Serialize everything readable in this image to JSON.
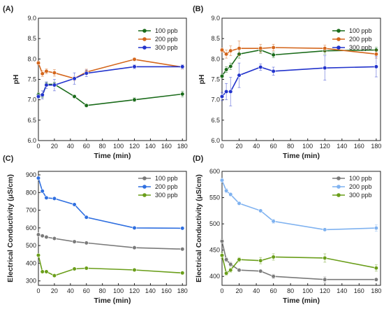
{
  "chart_data": [
    {
      "type": "line",
      "panel_label": "(A)",
      "xlabel": "Time (min)",
      "ylabel": "pH",
      "xlim": [
        0,
        185
      ],
      "ylim": [
        6.0,
        9.0
      ],
      "xticks": [
        0,
        20,
        40,
        60,
        80,
        100,
        120,
        140,
        160,
        180
      ],
      "yticks": [
        6.0,
        6.5,
        7.0,
        7.5,
        8.0,
        8.5,
        9.0
      ],
      "ytick_labels": [
        "6.0",
        "6.5",
        "7.0",
        "7.5",
        "8.0",
        "8.5",
        "9.0"
      ],
      "legend_position": "top-right",
      "x": [
        0,
        5,
        10,
        20,
        45,
        60,
        120,
        180
      ],
      "series": [
        {
          "name": "100 ppb",
          "color": "#1a6b1a",
          "values": [
            7.12,
            7.1,
            7.38,
            7.38,
            7.08,
            6.86,
            7.0,
            7.14
          ],
          "errors": [
            0.05,
            0.05,
            0.05,
            0.05,
            0.04,
            0.04,
            0.05,
            0.07
          ]
        },
        {
          "name": "200 ppb",
          "color": "#d4661c",
          "values": [
            7.9,
            7.64,
            7.7,
            7.66,
            7.52,
            7.68,
            7.99,
            7.8
          ],
          "errors": [
            0.05,
            0.07,
            0.06,
            0.08,
            0.05,
            0.07,
            0.04,
            0.05
          ]
        },
        {
          "name": "300 ppb",
          "color": "#2233cc",
          "values": [
            7.08,
            7.12,
            7.36,
            7.36,
            7.52,
            7.65,
            7.81,
            7.81
          ],
          "errors": [
            0.05,
            0.1,
            0.08,
            0.14,
            0.14,
            0.08,
            0.05,
            0.05
          ]
        }
      ]
    },
    {
      "type": "line",
      "panel_label": "(B)",
      "xlabel": "Time (min)",
      "ylabel": "pH",
      "xlim": [
        0,
        185
      ],
      "ylim": [
        6.0,
        9.0
      ],
      "xticks": [
        0,
        20,
        40,
        60,
        80,
        100,
        120,
        140,
        160,
        180
      ],
      "yticks": [
        6.0,
        6.5,
        7.0,
        7.5,
        8.0,
        8.5,
        9.0
      ],
      "ytick_labels": [
        "6.0",
        "6.5",
        "7.0",
        "7.5",
        "8.0",
        "8.5",
        "9.0"
      ],
      "legend_position": "top-right",
      "x": [
        0,
        5,
        10,
        20,
        45,
        60,
        120,
        180
      ],
      "series": [
        {
          "name": "100 ppb",
          "color": "#1a6b1a",
          "values": [
            7.58,
            7.74,
            7.82,
            8.12,
            8.22,
            8.1,
            8.2,
            8.22
          ],
          "errors": [
            0.05,
            0.07,
            0.08,
            0.1,
            0.08,
            0.07,
            0.08,
            0.07
          ]
        },
        {
          "name": "200 ppb",
          "color": "#d4661c",
          "values": [
            8.22,
            8.12,
            8.2,
            8.26,
            8.26,
            8.28,
            8.26,
            8.12
          ],
          "errors": [
            0.05,
            0.1,
            0.12,
            0.18,
            0.1,
            0.08,
            0.08,
            0.1
          ]
        },
        {
          "name": "300 ppb",
          "color": "#2233cc",
          "values": [
            7.08,
            7.2,
            7.2,
            7.6,
            7.8,
            7.7,
            7.78,
            7.81
          ],
          "errors": [
            0.1,
            0.2,
            0.35,
            0.3,
            0.08,
            0.1,
            0.3,
            0.25
          ]
        }
      ]
    },
    {
      "type": "line",
      "panel_label": "(C)",
      "xlabel": "Time (min)",
      "ylabel": "Electrical Conductivity (μS/cm)",
      "xlim": [
        0,
        185
      ],
      "ylim": [
        275,
        920
      ],
      "xticks": [
        0,
        20,
        40,
        60,
        80,
        100,
        120,
        140,
        160,
        180
      ],
      "yticks": [
        300,
        400,
        500,
        600,
        700,
        800,
        900
      ],
      "ytick_labels": [
        "300",
        "400",
        "500",
        "600",
        "700",
        "800",
        "900"
      ],
      "legend_position": "top-right",
      "x": [
        0,
        5,
        10,
        20,
        45,
        60,
        120,
        180
      ],
      "series": [
        {
          "name": "100 ppb",
          "color": "#7a7a7a",
          "values": [
            562,
            555,
            548,
            540,
            522,
            515,
            488,
            480
          ],
          "errors": [
            6,
            6,
            6,
            6,
            5,
            5,
            5,
            5
          ]
        },
        {
          "name": "200 ppb",
          "color": "#2f6fe0",
          "values": [
            882,
            808,
            770,
            766,
            732,
            660,
            600,
            598
          ],
          "errors": [
            8,
            8,
            6,
            6,
            8,
            8,
            6,
            6
          ]
        },
        {
          "name": "300 ppb",
          "color": "#6a9e1a",
          "values": [
            445,
            352,
            352,
            330,
            368,
            372,
            362,
            345
          ],
          "errors": [
            8,
            6,
            6,
            6,
            6,
            6,
            6,
            6
          ]
        }
      ]
    },
    {
      "type": "line",
      "panel_label": "(D)",
      "xlabel": "Time (min)",
      "ylabel": "Electrical Conductivity (μS/cm)",
      "xlim": [
        0,
        185
      ],
      "ylim": [
        383,
        600
      ],
      "xticks": [
        0,
        20,
        40,
        60,
        80,
        100,
        120,
        140,
        160,
        180
      ],
      "yticks": [
        400,
        450,
        500,
        550,
        600
      ],
      "ytick_labels": [
        "400",
        "450",
        "500",
        "550",
        "600"
      ],
      "legend_position": "top-right",
      "x": [
        0,
        5,
        10,
        20,
        45,
        60,
        120,
        180
      ],
      "series": [
        {
          "name": "100 ppb",
          "color": "#7a7a7a",
          "values": [
            467,
            432,
            423,
            412,
            410,
            400,
            394,
            394
          ],
          "errors": [
            4,
            4,
            4,
            3,
            3,
            4,
            5,
            3
          ]
        },
        {
          "name": "200 ppb",
          "color": "#7fb2f0",
          "values": [
            583,
            563,
            556,
            539,
            525,
            505,
            489,
            492
          ],
          "errors": [
            4,
            4,
            3,
            3,
            3,
            4,
            3,
            6
          ]
        },
        {
          "name": "300 ppb",
          "color": "#6a9e1a",
          "values": [
            440,
            406,
            412,
            432,
            430,
            437,
            435,
            416
          ],
          "errors": [
            6,
            4,
            4,
            4,
            6,
            6,
            8,
            6
          ]
        }
      ]
    }
  ]
}
